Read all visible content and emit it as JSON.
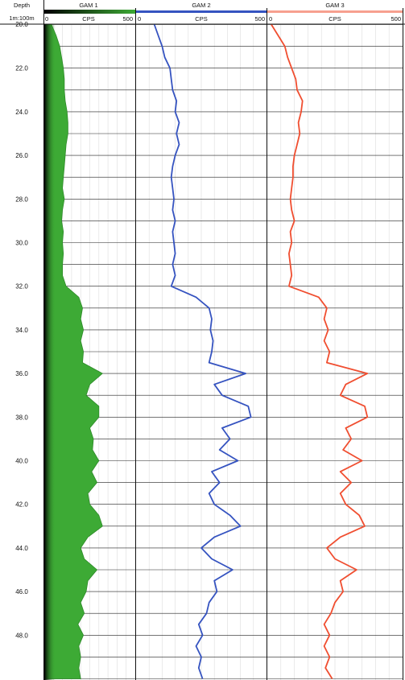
{
  "header": {
    "depth_label": "Depth",
    "scale_label": "1m:100m"
  },
  "tracks": [
    {
      "name": "GAM 1",
      "unit": "CPS",
      "min_label": "0",
      "max_label": "500",
      "min": 0,
      "max": 500,
      "color": "#3daa35",
      "style": "fill",
      "depth": [
        20,
        20.5,
        21,
        21.5,
        22,
        22.5,
        23,
        23.5,
        24,
        24.5,
        25,
        25.5,
        26,
        26.5,
        27,
        27.5,
        28,
        28.5,
        29,
        29.5,
        30,
        30.5,
        31,
        31.5,
        32,
        32.5,
        33,
        33.5,
        34,
        34.5,
        35,
        35.5,
        36,
        36.5,
        37,
        37.5,
        38,
        38.5,
        39,
        39.5,
        40,
        40.5,
        41,
        41.5,
        42,
        42.5,
        43,
        43.5,
        44,
        44.5,
        45,
        45.5,
        46,
        46.5,
        47,
        47.5,
        48,
        48.5,
        49,
        49.5,
        50
      ],
      "values": [
        40,
        65,
        85,
        95,
        105,
        110,
        110,
        115,
        125,
        130,
        130,
        120,
        115,
        110,
        105,
        100,
        110,
        100,
        95,
        105,
        100,
        105,
        100,
        100,
        120,
        190,
        210,
        200,
        215,
        200,
        215,
        210,
        320,
        250,
        230,
        300,
        300,
        250,
        270,
        265,
        300,
        260,
        290,
        240,
        250,
        300,
        320,
        240,
        200,
        220,
        290,
        240,
        230,
        200,
        220,
        185,
        215,
        190,
        200,
        190,
        200
      ]
    },
    {
      "name": "GAM 2",
      "unit": "CPS",
      "min_label": "0",
      "max_label": "500",
      "min": 0,
      "max": 500,
      "color": "#3553c0",
      "style": "line",
      "depth": [
        20,
        20.5,
        21,
        21.5,
        22,
        22.5,
        23,
        23.5,
        24,
        24.5,
        25,
        25.5,
        26,
        26.5,
        27,
        27.5,
        28,
        28.5,
        29,
        29.5,
        30,
        30.5,
        31,
        31.5,
        32,
        32.5,
        33,
        33.5,
        34,
        34.5,
        35,
        35.5,
        36,
        36.5,
        37,
        37.5,
        38,
        38.5,
        39,
        39.5,
        40,
        40.5,
        41,
        41.5,
        42,
        42.5,
        43,
        43.5,
        44,
        44.5,
        45,
        45.5,
        46,
        46.5,
        47,
        47.5,
        48,
        48.5,
        49,
        49.5,
        50
      ],
      "values": [
        70,
        85,
        100,
        110,
        130,
        135,
        140,
        155,
        150,
        165,
        155,
        165,
        150,
        140,
        135,
        140,
        145,
        140,
        150,
        140,
        145,
        150,
        140,
        150,
        135,
        230,
        280,
        290,
        285,
        295,
        290,
        280,
        420,
        300,
        330,
        430,
        440,
        330,
        360,
        320,
        390,
        290,
        320,
        280,
        300,
        360,
        400,
        300,
        250,
        290,
        370,
        300,
        310,
        280,
        270,
        240,
        255,
        230,
        250,
        240,
        255
      ]
    },
    {
      "name": "GAM 3",
      "unit": "CPS",
      "min_label": "0",
      "max_label": "500",
      "min": 0,
      "max": 500,
      "color": "#f04e30",
      "style": "line",
      "depth": [
        20,
        20.5,
        21,
        21.5,
        22,
        22.5,
        23,
        23.5,
        24,
        24.5,
        25,
        25.5,
        26,
        26.5,
        27,
        27.5,
        28,
        28.5,
        29,
        29.5,
        30,
        30.5,
        31,
        31.5,
        32,
        32.5,
        33,
        33.5,
        34,
        34.5,
        35,
        35.5,
        36,
        36.5,
        37,
        37.5,
        38,
        38.5,
        39,
        39.5,
        40,
        40.5,
        41,
        41.5,
        42,
        42.5,
        43,
        43.5,
        44,
        44.5,
        45,
        45.5,
        46,
        46.5,
        47,
        47.5,
        48,
        48.5,
        49,
        49.5,
        50
      ],
      "values": [
        15,
        40,
        65,
        75,
        90,
        105,
        110,
        130,
        125,
        115,
        120,
        110,
        100,
        95,
        95,
        90,
        85,
        90,
        100,
        85,
        90,
        80,
        85,
        90,
        80,
        190,
        220,
        210,
        225,
        210,
        230,
        220,
        370,
        290,
        270,
        360,
        370,
        290,
        310,
        280,
        350,
        270,
        310,
        270,
        290,
        340,
        360,
        270,
        220,
        250,
        330,
        270,
        280,
        250,
        235,
        210,
        230,
        210,
        230,
        215,
        240
      ]
    }
  ],
  "depth_axis": {
    "min": 20,
    "max": 50,
    "tick_labels": [
      "22.0",
      "24.0",
      "26.0",
      "28.0",
      "30.0",
      "32.0",
      "34.0",
      "36.0",
      "38.0",
      "40.0",
      "42.0",
      "44.0",
      "46.0",
      "48.0"
    ],
    "top_label": "20.0"
  },
  "chart_data": {
    "type": "line",
    "title": "",
    "ylabel": "Depth",
    "xlabel": "CPS",
    "ylim": [
      50,
      20
    ],
    "xlim": [
      0,
      500
    ],
    "series": [
      {
        "name": "GAM 1",
        "x": "tracks.0.values",
        "y": "tracks.0.depth"
      },
      {
        "name": "GAM 2",
        "x": "tracks.1.values",
        "y": "tracks.1.depth"
      },
      {
        "name": "GAM 3",
        "x": "tracks.2.values",
        "y": "tracks.2.depth"
      }
    ],
    "grid": true
  }
}
